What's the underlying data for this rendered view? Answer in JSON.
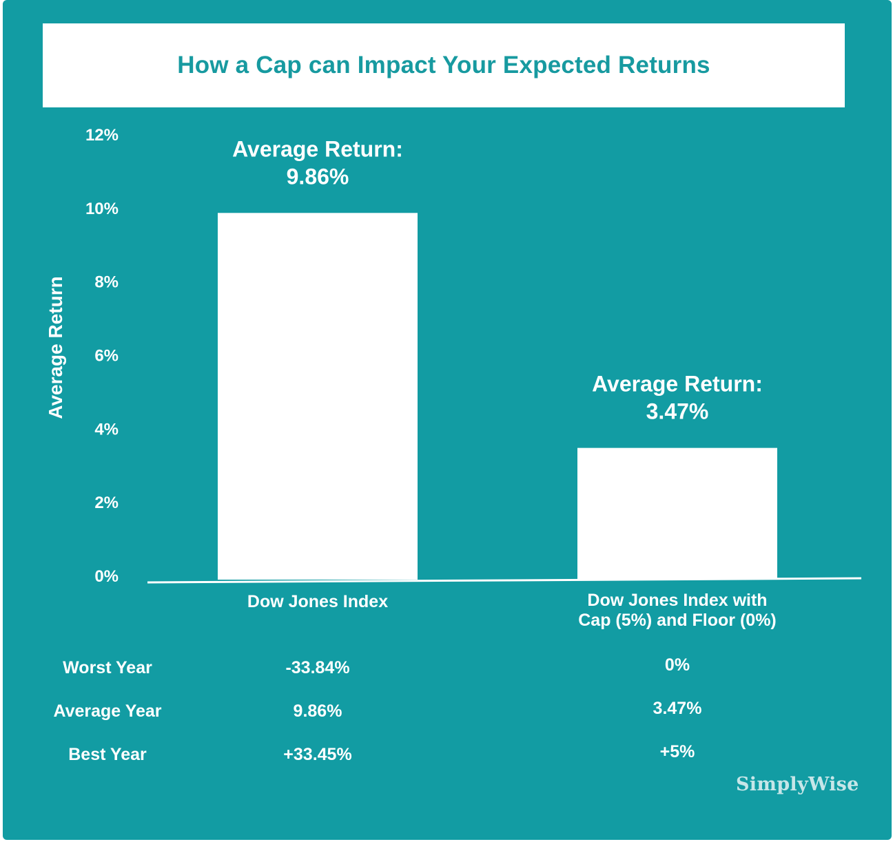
{
  "chart_data": {
    "type": "bar",
    "title": "How a Cap can Impact Your Expected Returns",
    "ylabel": "Average Return",
    "xlabel": "",
    "ylim": [
      0,
      12
    ],
    "yticks": [
      "0%",
      "2%",
      "4%",
      "6%",
      "8%",
      "10%",
      "12%"
    ],
    "categories": [
      [
        "Dow Jones Index"
      ],
      [
        "Dow Jones Index with",
        "Cap (5%) and Floor (0%)"
      ]
    ],
    "values": [
      9.86,
      3.47
    ],
    "data_labels": [
      [
        "Average Return:",
        "9.86%"
      ],
      [
        "Average Return:",
        "3.47%"
      ]
    ],
    "colors": {
      "background": "#129ca3",
      "bars": "#ffffff",
      "title_text": "#179aa0"
    }
  },
  "table": {
    "rows": [
      {
        "label": "Worst Year",
        "values": [
          "-33.84%",
          "0%"
        ]
      },
      {
        "label": "Average Year",
        "values": [
          "9.86%",
          "3.47%"
        ]
      },
      {
        "label": "Best Year",
        "values": [
          "+33.45%",
          "+5%"
        ]
      }
    ]
  },
  "brand": {
    "logo_text": "SimplyWise"
  }
}
